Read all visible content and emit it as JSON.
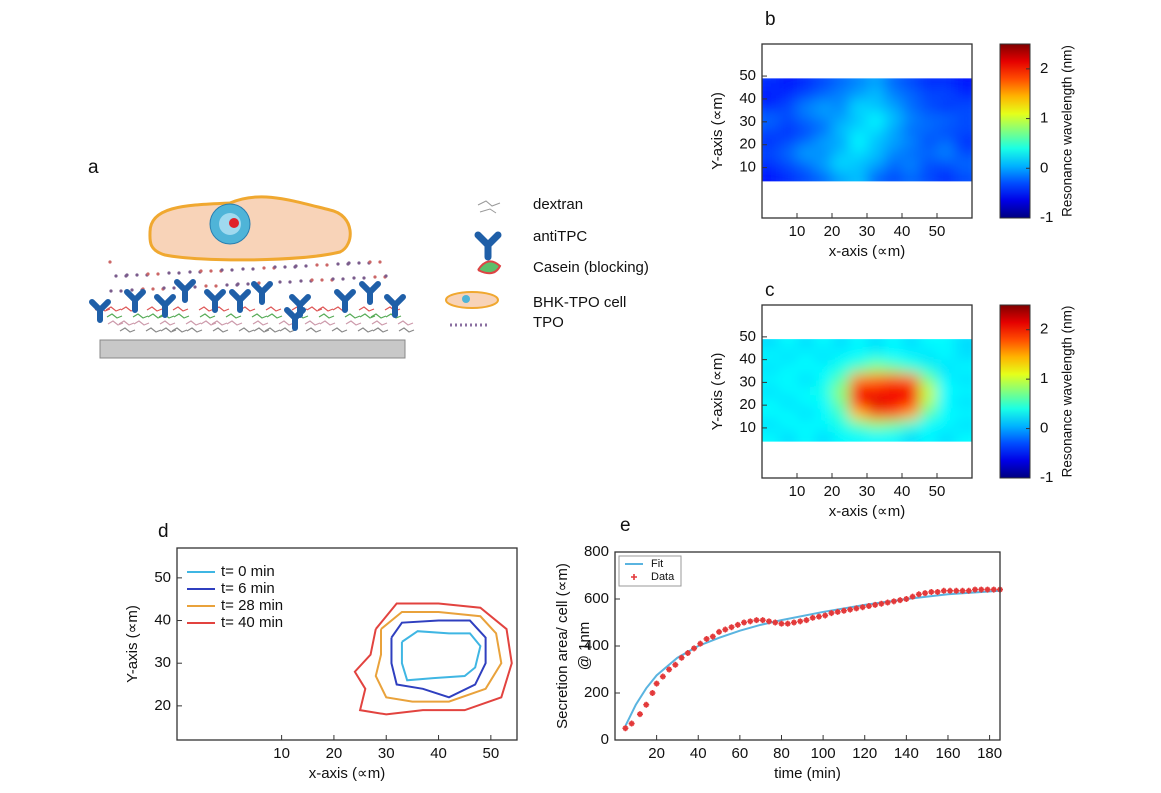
{
  "diagram": {
    "label": "a",
    "legend": [
      "dextran",
      "antiTPC",
      "Casein (blocking)",
      "BHK-TPO cell",
      "TPO"
    ]
  },
  "chart_data": [
    {
      "type": "heatmap",
      "label": "b",
      "xlabel": "x-axis (∝m)",
      "ylabel": "Y-axis (∝m)",
      "colorbar_label": "Resonance wavelength (nm)",
      "xlim": [
        0,
        60
      ],
      "ylim": [
        -12,
        64
      ],
      "xticks": [
        10,
        20,
        30,
        40,
        50
      ],
      "yticks": [
        10,
        20,
        30,
        40,
        50
      ],
      "zlim": [
        -1,
        2.5
      ],
      "zticks": [
        -1,
        0,
        1,
        2
      ],
      "x": [
        2.5,
        7.5,
        12.5,
        17.5,
        22.5,
        27.5,
        32.5,
        37.5,
        42.5,
        47.5,
        52.5,
        57.5
      ],
      "y": [
        6.5,
        11.5,
        16.5,
        21.5,
        26.5,
        31.5,
        36.5,
        41.5,
        46.5
      ],
      "z": [
        [
          -0.5,
          -0.4,
          -0.3,
          -0.2,
          0,
          0.1,
          -0.2,
          -0.3,
          -0.2,
          -0.3,
          -0.4,
          -0.3
        ],
        [
          -0.4,
          -0.3,
          -0.2,
          0,
          0.2,
          0.1,
          0,
          -0.2,
          -0.1,
          -0.3,
          -0.3,
          -0.2
        ],
        [
          -0.3,
          -0.2,
          0,
          -0.1,
          0.1,
          0.2,
          0.1,
          -0.1,
          -0.2,
          -0.2,
          -0.1,
          -0.3
        ],
        [
          -0.4,
          -0.3,
          -0.2,
          0,
          0,
          0.3,
          0.1,
          0,
          -0.1,
          -0.3,
          -0.2,
          -0.4
        ],
        [
          -0.3,
          -0.4,
          -0.3,
          -0.2,
          0.1,
          0.2,
          0.2,
          0,
          -0.2,
          -0.2,
          -0.3,
          -0.3
        ],
        [
          -0.2,
          -0.3,
          -0.2,
          -0.1,
          0,
          0.1,
          0.3,
          0.1,
          -0.1,
          -0.2,
          -0.2,
          -0.3
        ],
        [
          -0.4,
          -0.3,
          -0.1,
          0,
          -0.1,
          0.2,
          0.1,
          0,
          -0.2,
          -0.3,
          -0.4,
          -0.3
        ],
        [
          -0.5,
          -0.4,
          -0.3,
          -0.2,
          -0.1,
          0,
          0.1,
          -0.1,
          -0.2,
          -0.3,
          -0.3,
          -0.4
        ],
        [
          -0.4,
          -0.5,
          -0.4,
          -0.3,
          -0.2,
          -0.1,
          0,
          -0.2,
          -0.3,
          -0.4,
          -0.4,
          -0.5
        ]
      ]
    },
    {
      "type": "heatmap",
      "label": "c",
      "xlabel": "x-axis (∝m)",
      "ylabel": "Y-axis (∝m)",
      "colorbar_label": "Resonance wavelength (nm)",
      "xlim": [
        0,
        60
      ],
      "ylim": [
        -12,
        64
      ],
      "xticks": [
        10,
        20,
        30,
        40,
        50
      ],
      "yticks": [
        10,
        20,
        30,
        40,
        50
      ],
      "zlim": [
        -1,
        2.5
      ],
      "zticks": [
        -1,
        0,
        1,
        2
      ],
      "x": [
        2.5,
        7.5,
        12.5,
        17.5,
        22.5,
        27.5,
        32.5,
        37.5,
        42.5,
        47.5,
        52.5,
        57.5
      ],
      "y": [
        6.5,
        11.5,
        16.5,
        21.5,
        26.5,
        31.5,
        36.5,
        41.5,
        46.5
      ],
      "z": [
        [
          0.3,
          0.2,
          0.3,
          0.2,
          0.3,
          0.3,
          0.3,
          0.3,
          0.2,
          0.3,
          0.2,
          0.3
        ],
        [
          0.2,
          0.3,
          0.3,
          0.3,
          0.4,
          0.6,
          0.8,
          0.7,
          0.5,
          0.3,
          0.3,
          0.2
        ],
        [
          0.3,
          0.3,
          0.2,
          0.3,
          0.5,
          1.4,
          1.8,
          1.8,
          1.5,
          0.6,
          0.3,
          0.3
        ],
        [
          0.3,
          0.2,
          0.3,
          0.3,
          0.7,
          2.0,
          2.2,
          2.1,
          2.0,
          0.9,
          0.3,
          0.2
        ],
        [
          0.2,
          0.3,
          0.3,
          0.4,
          0.8,
          2.1,
          2.0,
          2.1,
          2.1,
          1.0,
          0.3,
          0.3
        ],
        [
          0.3,
          0.3,
          0.2,
          0.3,
          0.6,
          1.6,
          1.7,
          1.8,
          1.7,
          0.7,
          0.3,
          0.2
        ],
        [
          0.2,
          0.3,
          0.3,
          0.3,
          0.4,
          0.6,
          0.8,
          0.7,
          0.5,
          0.4,
          0.2,
          0.3
        ],
        [
          0.3,
          0.2,
          0.3,
          0.2,
          0.3,
          0.3,
          0.4,
          0.3,
          0.3,
          0.2,
          0.3,
          0.2
        ],
        [
          0.2,
          0.3,
          0.2,
          0.3,
          0.2,
          0.3,
          0.2,
          0.3,
          0.2,
          0.3,
          0.3,
          0.2
        ]
      ]
    },
    {
      "type": "line",
      "label": "d",
      "xlabel": "x-axis (∝m)",
      "ylabel": [
        "Y-axis (∝m)"
      ],
      "xlim": [
        -10,
        55
      ],
      "ylim": [
        12,
        57
      ],
      "xticks": [
        10,
        20,
        30,
        40,
        50
      ],
      "yticks": [
        20,
        30,
        40,
        50
      ],
      "legend": "upper left",
      "series": [
        {
          "name": "t= 0 min",
          "color": "#3fb6e3",
          "kind": "line",
          "x": [
            33,
            36,
            42,
            46,
            48,
            47,
            45,
            39,
            34,
            33,
            33
          ],
          "y": [
            35,
            37.5,
            37,
            37,
            34,
            29,
            27,
            26.5,
            26,
            30,
            35
          ]
        },
        {
          "name": "t= 6 min",
          "color": "#2f3fbf",
          "kind": "line",
          "x": [
            31,
            33,
            40,
            46,
            49,
            49,
            47,
            42,
            37,
            32,
            31,
            31
          ],
          "y": [
            36,
            39.5,
            40,
            40,
            36,
            30,
            25,
            22,
            24,
            25,
            30,
            36
          ]
        },
        {
          "name": "t= 28 min",
          "color": "#e9a23b",
          "kind": "line",
          "x": [
            29,
            33,
            40,
            48,
            51,
            52,
            49,
            42,
            35,
            30,
            28,
            29,
            29
          ],
          "y": [
            38,
            42,
            42,
            41,
            37,
            30,
            24,
            21,
            21,
            22,
            27,
            32,
            38
          ]
        },
        {
          "name": "t= 40 min",
          "color": "#e2433f",
          "kind": "line",
          "x": [
            28,
            32,
            40,
            48,
            53,
            54,
            52,
            45,
            37,
            30,
            25,
            26,
            24,
            27,
            28
          ],
          "y": [
            38,
            44,
            44,
            43,
            38,
            30,
            22,
            19,
            19,
            18,
            19,
            24,
            28,
            32,
            38
          ]
        }
      ]
    },
    {
      "type": "line",
      "label": "e",
      "xlabel": "time (min)",
      "ylabel": [
        "Secretion area/ cell (∝m)",
        "@ 1nm"
      ],
      "xlim": [
        0,
        185
      ],
      "ylim": [
        0,
        800
      ],
      "xticks": [
        20,
        40,
        60,
        80,
        100,
        120,
        140,
        160,
        180
      ],
      "yticks": [
        0,
        200,
        400,
        600,
        800
      ],
      "legend": "upper left",
      "series": [
        {
          "name": "Fit",
          "color": "#5ab4e0",
          "kind": "line",
          "x": [
            5,
            10,
            15,
            20,
            30,
            40,
            50,
            60,
            70,
            80,
            100,
            120,
            140,
            160,
            185
          ],
          "y": [
            60,
            150,
            220,
            275,
            350,
            400,
            435,
            465,
            490,
            510,
            545,
            575,
            600,
            620,
            635
          ]
        },
        {
          "name": "Data",
          "color": "#e3393a",
          "kind": "scatter",
          "x": [
            5,
            8,
            12,
            15,
            18,
            20,
            23,
            26,
            29,
            32,
            35,
            38,
            41,
            44,
            47,
            50,
            53,
            56,
            59,
            62,
            65,
            68,
            71,
            74,
            77,
            80,
            83,
            86,
            89,
            92,
            95,
            98,
            101,
            104,
            107,
            110,
            113,
            116,
            119,
            122,
            125,
            128,
            131,
            134,
            137,
            140,
            143,
            146,
            149,
            152,
            155,
            158,
            161,
            164,
            167,
            170,
            173,
            176,
            179,
            182,
            185
          ],
          "y": [
            50,
            70,
            110,
            150,
            200,
            240,
            270,
            300,
            320,
            350,
            370,
            390,
            410,
            430,
            440,
            460,
            470,
            480,
            490,
            500,
            505,
            510,
            510,
            505,
            500,
            495,
            495,
            500,
            505,
            510,
            520,
            525,
            530,
            540,
            545,
            550,
            555,
            560,
            565,
            570,
            575,
            580,
            585,
            590,
            595,
            600,
            610,
            620,
            625,
            630,
            630,
            635,
            635,
            635,
            635,
            635,
            640,
            640,
            640,
            640,
            640
          ]
        }
      ]
    }
  ]
}
